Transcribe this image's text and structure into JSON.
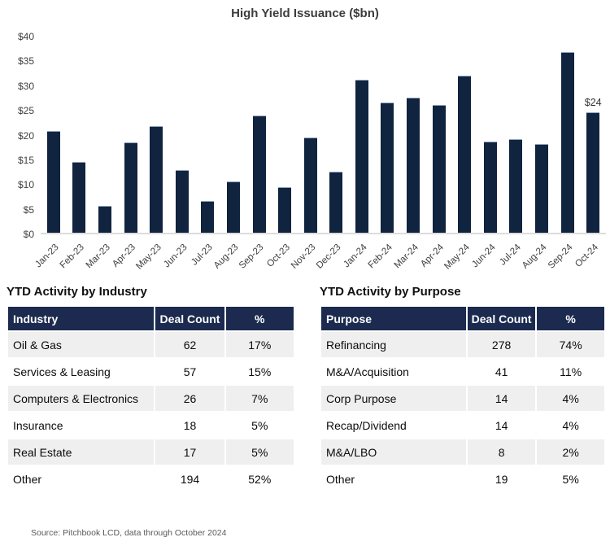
{
  "chart_data": {
    "type": "bar",
    "title": "High Yield Issuance ($bn)",
    "categories": [
      "Jan-23",
      "Feb-23",
      "Mar-23",
      "Apr-23",
      "May-23",
      "Jun-23",
      "Jul-23",
      "Aug-23",
      "Sep-23",
      "Oct-23",
      "Nov-23",
      "Dec-23",
      "Jan-24",
      "Feb-24",
      "Mar-24",
      "Apr-24",
      "May-24",
      "Jun-24",
      "Jul-24",
      "Aug-24",
      "Sep-24",
      "Oct-24"
    ],
    "values": [
      20.5,
      14.3,
      5.4,
      18.2,
      21.6,
      12.6,
      6.5,
      10.4,
      23.7,
      9.3,
      19.2,
      12.4,
      31.0,
      26.4,
      27.4,
      25.8,
      31.8,
      18.4,
      18.9,
      17.9,
      36.5,
      24.3
    ],
    "xlabel": "",
    "ylabel": "",
    "ylim": [
      0,
      40
    ],
    "yticks": [
      "$0",
      "$5",
      "$10",
      "$15",
      "$20",
      "$25",
      "$30",
      "$35",
      "$40"
    ],
    "ytick_values": [
      0,
      5,
      10,
      15,
      20,
      25,
      30,
      35,
      40
    ],
    "grid": "off",
    "legend": "none",
    "bar_color": "#10233f",
    "annotation": {
      "index": 21,
      "text": "$24"
    }
  },
  "tables": [
    {
      "section_title": "YTD Activity by Industry",
      "headers": [
        "Industry",
        "Deal Count",
        "%"
      ],
      "rows": [
        [
          "Oil & Gas",
          "62",
          "17%"
        ],
        [
          "Services & Leasing",
          "57",
          "15%"
        ],
        [
          "Computers & Electronics",
          "26",
          "7%"
        ],
        [
          "Insurance",
          "18",
          "5%"
        ],
        [
          "Real Estate",
          "17",
          "5%"
        ],
        [
          "Other",
          "194",
          "52%"
        ]
      ]
    },
    {
      "section_title": "YTD Activity by Purpose",
      "headers": [
        "Purpose",
        "Deal Count",
        "%"
      ],
      "rows": [
        [
          "Refinancing",
          "278",
          "74%"
        ],
        [
          "M&A/Acquisition",
          "41",
          "11%"
        ],
        [
          "Corp Purpose",
          "14",
          "4%"
        ],
        [
          "Recap/Dividend",
          "14",
          "4%"
        ],
        [
          "M&A/LBO",
          "8",
          "2%"
        ],
        [
          "Other",
          "19",
          "5%"
        ]
      ]
    }
  ],
  "footer": {
    "source": "Source: Pitchbook LCD, data through October 2024"
  },
  "colors": {
    "bar": "#10233f",
    "table_header_bg": "#1b2a4e",
    "row_alt_bg": "#efefef",
    "axis_line": "#dcdcdc"
  }
}
